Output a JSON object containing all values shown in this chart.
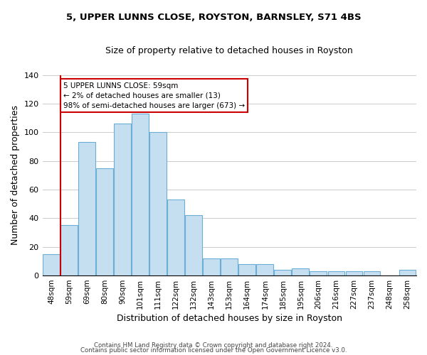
{
  "title": "5, UPPER LUNNS CLOSE, ROYSTON, BARNSLEY, S71 4BS",
  "subtitle": "Size of property relative to detached houses in Royston",
  "xlabel": "Distribution of detached houses by size in Royston",
  "ylabel": "Number of detached properties",
  "bar_labels": [
    "48sqm",
    "59sqm",
    "69sqm",
    "80sqm",
    "90sqm",
    "101sqm",
    "111sqm",
    "122sqm",
    "132sqm",
    "143sqm",
    "153sqm",
    "164sqm",
    "174sqm",
    "185sqm",
    "195sqm",
    "206sqm",
    "216sqm",
    "227sqm",
    "237sqm",
    "248sqm",
    "258sqm"
  ],
  "bar_values": [
    15,
    35,
    93,
    75,
    106,
    113,
    100,
    53,
    42,
    12,
    12,
    8,
    8,
    4,
    5,
    3,
    3,
    3,
    3,
    0,
    4
  ],
  "bar_color": "#c5dff0",
  "bar_edge_color": "#6aaed6",
  "annotation_box_text": "5 UPPER LUNNS CLOSE: 59sqm\n← 2% of detached houses are smaller (13)\n98% of semi-detached houses are larger (673) →",
  "annotation_box_edge_color": "#cc0000",
  "vline_color": "#cc0000",
  "ylim": [
    0,
    140
  ],
  "yticks": [
    0,
    20,
    40,
    60,
    80,
    100,
    120,
    140
  ],
  "footer_line1": "Contains HM Land Registry data © Crown copyright and database right 2024.",
  "footer_line2": "Contains public sector information licensed under the Open Government Licence v3.0.",
  "background_color": "#ffffff",
  "grid_color": "#cccccc"
}
